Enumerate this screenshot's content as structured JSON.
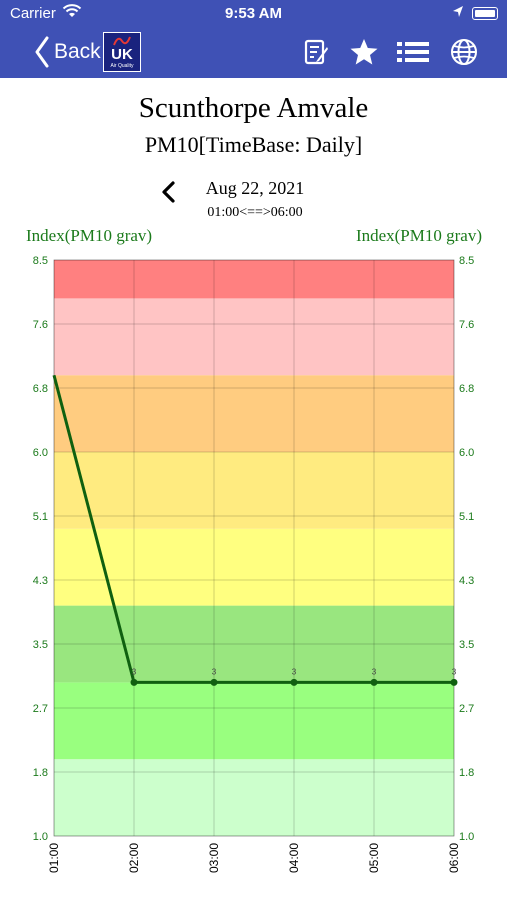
{
  "status_bar": {
    "carrier": "Carrier",
    "time": "9:53 AM"
  },
  "nav": {
    "back_label": "Back",
    "logo_text": "UK",
    "logo_subtext": "Air Quality",
    "icons": [
      "edit-note-icon",
      "star-icon",
      "list-icon",
      "globe-icon"
    ]
  },
  "page": {
    "title": "Scunthorpe Amvale",
    "subtitle": "PM10[TimeBase: Daily]",
    "date": "Aug 22, 2021",
    "range": "01:00<==>06:00"
  },
  "colors": {
    "nav_bg": "#3f51b5",
    "axis_text": "#1b7a1b",
    "line": "#106010"
  },
  "chart_data": {
    "type": "line",
    "y_axis_label_left": "Index(PM10 grav)",
    "y_axis_label_right": "Index(PM10 grav)",
    "x": [
      "01:00",
      "02:00",
      "03:00",
      "04:00",
      "05:00",
      "06:00"
    ],
    "yticks": [
      "8.5",
      "7.6",
      "6.8",
      "6.0",
      "5.1",
      "4.3",
      "3.5",
      "2.7",
      "1.8",
      "1.0"
    ],
    "ylim": [
      1.0,
      8.5
    ],
    "series": [
      {
        "values": [
          7.0,
          3.0,
          3.0,
          3.0,
          3.0,
          3.0
        ]
      }
    ],
    "point_labels": [
      "",
      "3",
      "3",
      "3",
      "3",
      "3"
    ],
    "bands": [
      {
        "from": 1.0,
        "to": 2.0,
        "color": "#ccffcc"
      },
      {
        "from": 2.0,
        "to": 3.0,
        "color": "#99ff7f"
      },
      {
        "from": 3.0,
        "to": 4.0,
        "color": "#99e67f"
      },
      {
        "from": 4.0,
        "to": 5.0,
        "color": "#ffff80"
      },
      {
        "from": 5.0,
        "to": 6.0,
        "color": "#ffeb80"
      },
      {
        "from": 6.0,
        "to": 7.0,
        "color": "#ffcc80"
      },
      {
        "from": 7.0,
        "to": 8.0,
        "color": "#ffc4c4"
      },
      {
        "from": 8.0,
        "to": 8.5,
        "color": "#ff8080"
      }
    ],
    "grid": true
  }
}
